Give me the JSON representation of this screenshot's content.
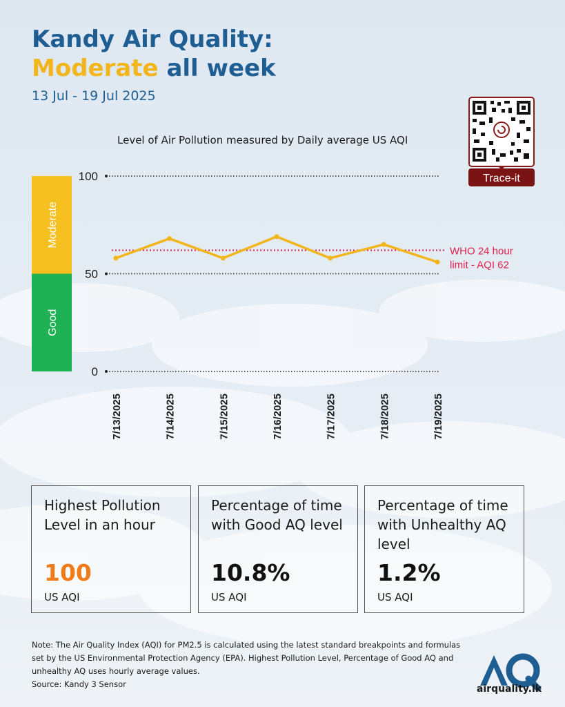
{
  "header": {
    "title_line1": "Kandy Air Quality:",
    "title_highlight": "Moderate",
    "title_rest": " all week",
    "date_range": "13 Jul - 19 Jul 2025"
  },
  "qr": {
    "label": "Trace-it",
    "icon": "qr-code-icon"
  },
  "chart_data": {
    "type": "line",
    "title": "Level of Air Pollution measured by Daily average US AQI",
    "categories": [
      "7/13/2025",
      "7/14/2025",
      "7/15/2025",
      "7/16/2025",
      "7/17/2025",
      "7/18/2025",
      "7/19/2025"
    ],
    "series": [
      {
        "values": [
          58,
          68,
          58,
          69,
          58,
          65,
          56
        ],
        "color": "#f2b51c"
      }
    ],
    "ylim": [
      0,
      100
    ],
    "yticks": [
      0,
      50,
      100
    ],
    "bands": [
      {
        "label": "Moderate",
        "from": 50,
        "to": 100,
        "color": "#f5c020"
      },
      {
        "label": "Good",
        "from": 0,
        "to": 50,
        "color": "#1fb255"
      }
    ],
    "reference_line": {
      "value": 62,
      "label_line1": "WHO 24 hour",
      "label_line2": "limit - AQI 62",
      "color": "#e0204d"
    },
    "grid": true
  },
  "stats": [
    {
      "label": "Highest Pollution Level in an hour",
      "value": "100",
      "unit": "US AQI",
      "value_color": "#f07b1a"
    },
    {
      "label": "Percentage of time with Good AQ level",
      "value": "10.8%",
      "unit": "US AQI",
      "value_color": "#111111"
    },
    {
      "label": "Percentage of time with Unhealthy AQ level",
      "value": "1.2%",
      "unit": "US AQI",
      "value_color": "#111111"
    }
  ],
  "footer": {
    "note": "Note: The Air Quality Index (AQI) for PM2.5 is calculated using the latest standard breakpoints and formulas set by the US Environmental Protection Agency (EPA). Highest Pollution Level, Percentage of Good AQ and unhealthy AQ uses hourly average values.",
    "source": "Source: Kandy 3 Sensor",
    "logo_text": "AQ",
    "logo_url": "airquality.lk"
  }
}
